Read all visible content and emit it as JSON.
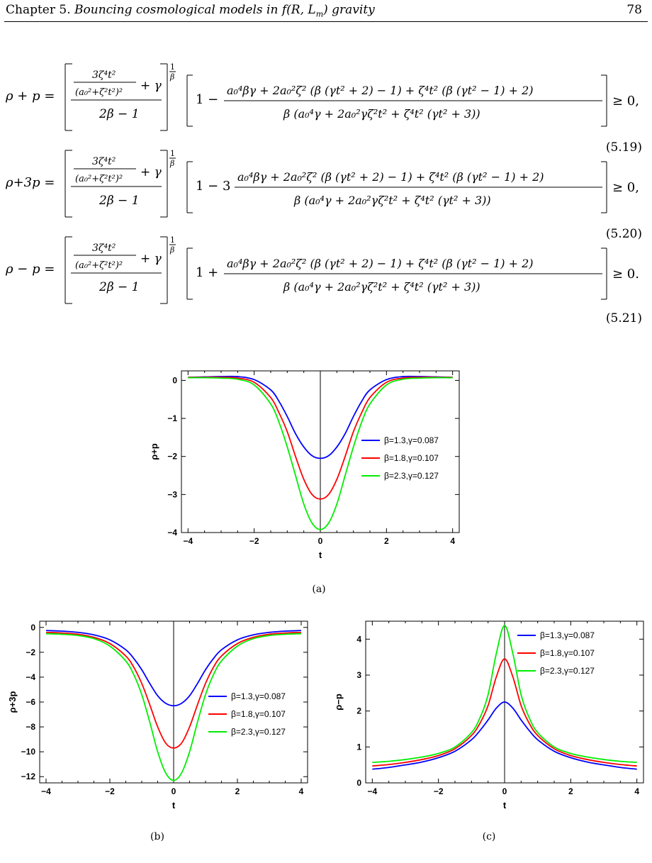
{
  "header": {
    "chapter": "Chapter 5.",
    "title": "Bouncing cosmological models in f(R, L_m) gravity",
    "page": "78"
  },
  "equations": [
    {
      "lhs": "ρ + p =",
      "sign": "1 −",
      "coef": "",
      "relation": "≥ 0,",
      "number": "(5.19)"
    },
    {
      "lhs": "ρ+3p =",
      "sign": "1 − 3",
      "coef": "3",
      "relation": "≥ 0,",
      "number": "(5.20)"
    },
    {
      "lhs": "ρ − p =",
      "sign": "1 +",
      "coef": "",
      "relation": "≥ 0.",
      "number": "(5.21)"
    }
  ],
  "captions": [
    "(a)",
    "(b)",
    "(c)"
  ],
  "chart_data": [
    {
      "type": "line",
      "panel": "(a)",
      "xlabel": "t",
      "ylabel": "ρ+p",
      "xlim": [
        -4.2,
        4.2
      ],
      "ylim": [
        -4.0,
        0.25
      ],
      "xticks": [
        -4,
        -2,
        0,
        2,
        4
      ],
      "yticks": [
        0,
        -1,
        -2,
        -3,
        -4
      ],
      "legend_position": "bottom-right",
      "series": [
        {
          "name": "β=1.3,γ=0.087",
          "color": "#0000ff",
          "x": [
            -4,
            -3.5,
            -3,
            -2.5,
            -2,
            -1.5,
            -1.25,
            -1,
            -0.75,
            -0.5,
            -0.25,
            0,
            0.25,
            0.5,
            0.75,
            1,
            1.25,
            1.5,
            2,
            2.5,
            3,
            3.5,
            4
          ],
          "y": [
            0.08,
            0.09,
            0.1,
            0.1,
            0.02,
            -0.25,
            -0.55,
            -0.95,
            -1.4,
            -1.75,
            -1.98,
            -2.05,
            -1.98,
            -1.75,
            -1.4,
            -0.95,
            -0.55,
            -0.25,
            0.02,
            0.1,
            0.1,
            0.09,
            0.08
          ]
        },
        {
          "name": "β=1.8,γ=0.107",
          "color": "#ff0000",
          "x": [
            -4,
            -3.5,
            -3,
            -2.5,
            -2,
            -1.5,
            -1.25,
            -1,
            -0.75,
            -0.5,
            -0.25,
            0,
            0.25,
            0.5,
            0.75,
            1,
            1.25,
            1.5,
            2,
            2.5,
            3,
            3.5,
            4
          ],
          "y": [
            0.08,
            0.08,
            0.08,
            0.06,
            -0.05,
            -0.45,
            -0.85,
            -1.35,
            -2.0,
            -2.6,
            -3.0,
            -3.12,
            -3.0,
            -2.6,
            -2.0,
            -1.35,
            -0.85,
            -0.45,
            -0.05,
            0.06,
            0.08,
            0.08,
            0.08
          ]
        },
        {
          "name": "β=2.3,γ=0.127",
          "color": "#00ee00",
          "x": [
            -4,
            -3.5,
            -3,
            -2.5,
            -2,
            -1.5,
            -1.25,
            -1,
            -0.75,
            -0.5,
            -0.25,
            0,
            0.25,
            0.5,
            0.75,
            1,
            1.25,
            1.5,
            2,
            2.5,
            3,
            3.5,
            4
          ],
          "y": [
            0.07,
            0.07,
            0.06,
            0.03,
            -0.12,
            -0.62,
            -1.1,
            -1.75,
            -2.5,
            -3.25,
            -3.75,
            -3.92,
            -3.75,
            -3.25,
            -2.5,
            -1.75,
            -1.1,
            -0.62,
            -0.12,
            0.03,
            0.06,
            0.07,
            0.07
          ]
        }
      ]
    },
    {
      "type": "line",
      "panel": "(b)",
      "xlabel": "t",
      "ylabel": "ρ+3p",
      "xlim": [
        -4.2,
        4.2
      ],
      "ylim": [
        -12.5,
        0.5
      ],
      "xticks": [
        -4,
        -2,
        0,
        2,
        4
      ],
      "yticks": [
        0,
        -2,
        -4,
        -6,
        -8,
        -10,
        -12
      ],
      "legend_position": "bottom-right",
      "series": [
        {
          "name": "β=1.3,γ=0.087",
          "color": "#0000ff",
          "x": [
            -4,
            -3.5,
            -3,
            -2.5,
            -2,
            -1.5,
            -1.25,
            -1,
            -0.75,
            -0.5,
            -0.25,
            0,
            0.25,
            0.5,
            0.75,
            1,
            1.25,
            1.5,
            2,
            2.5,
            3,
            3.5,
            4
          ],
          "y": [
            -0.25,
            -0.3,
            -0.4,
            -0.6,
            -1.0,
            -1.8,
            -2.5,
            -3.4,
            -4.5,
            -5.5,
            -6.1,
            -6.3,
            -6.1,
            -5.5,
            -4.5,
            -3.4,
            -2.5,
            -1.8,
            -1.0,
            -0.6,
            -0.4,
            -0.3,
            -0.25
          ]
        },
        {
          "name": "β=1.8,γ=0.107",
          "color": "#ff0000",
          "x": [
            -4,
            -3.5,
            -3,
            -2.5,
            -2,
            -1.5,
            -1.25,
            -1,
            -0.75,
            -0.5,
            -0.25,
            0,
            0.25,
            0.5,
            0.75,
            1,
            1.25,
            1.5,
            2,
            2.5,
            3,
            3.5,
            4
          ],
          "y": [
            -0.4,
            -0.45,
            -0.55,
            -0.8,
            -1.3,
            -2.3,
            -3.2,
            -4.5,
            -6.2,
            -8.0,
            -9.3,
            -9.7,
            -9.3,
            -8.0,
            -6.2,
            -4.5,
            -3.2,
            -2.3,
            -1.3,
            -0.8,
            -0.55,
            -0.45,
            -0.4
          ]
        },
        {
          "name": "β=2.3,γ=0.127",
          "color": "#00ee00",
          "x": [
            -4,
            -3.5,
            -3,
            -2.5,
            -2,
            -1.5,
            -1.25,
            -1,
            -0.75,
            -0.5,
            -0.25,
            0,
            0.25,
            0.5,
            0.75,
            1,
            1.25,
            1.5,
            2,
            2.5,
            3,
            3.5,
            4
          ],
          "y": [
            -0.5,
            -0.55,
            -0.65,
            -0.9,
            -1.5,
            -2.7,
            -3.8,
            -5.4,
            -7.6,
            -10.0,
            -11.7,
            -12.3,
            -11.7,
            -10.0,
            -7.6,
            -5.4,
            -3.8,
            -2.7,
            -1.5,
            -0.9,
            -0.65,
            -0.55,
            -0.5
          ]
        }
      ]
    },
    {
      "type": "line",
      "panel": "(c)",
      "xlabel": "t",
      "ylabel": "ρ−p",
      "xlim": [
        -4.2,
        4.2
      ],
      "ylim": [
        0,
        4.5
      ],
      "xticks": [
        -4,
        -2,
        0,
        2,
        4
      ],
      "yticks": [
        0,
        1,
        2,
        3,
        4
      ],
      "legend_position": "top-right",
      "series": [
        {
          "name": "β=1.3,γ=0.087",
          "color": "#0000ff",
          "x": [
            -4,
            -3.5,
            -3,
            -2.5,
            -2,
            -1.5,
            -1,
            -0.75,
            -0.5,
            -0.25,
            0,
            0.25,
            0.5,
            0.75,
            1,
            1.5,
            2,
            2.5,
            3,
            3.5,
            4
          ],
          "y": [
            0.38,
            0.43,
            0.5,
            0.58,
            0.7,
            0.88,
            1.2,
            1.45,
            1.75,
            2.08,
            2.25,
            2.08,
            1.75,
            1.45,
            1.2,
            0.88,
            0.7,
            0.58,
            0.5,
            0.43,
            0.38
          ]
        },
        {
          "name": "β=1.8,γ=0.107",
          "color": "#ff0000",
          "x": [
            -4,
            -3.5,
            -3,
            -2.5,
            -2,
            -1.5,
            -1,
            -0.75,
            -0.5,
            -0.25,
            0,
            0.25,
            0.5,
            0.75,
            1,
            1.5,
            2,
            2.5,
            3,
            3.5,
            4
          ],
          "y": [
            0.47,
            0.51,
            0.57,
            0.65,
            0.76,
            0.95,
            1.32,
            1.65,
            2.15,
            2.95,
            3.45,
            2.95,
            2.15,
            1.65,
            1.32,
            0.95,
            0.76,
            0.65,
            0.57,
            0.51,
            0.47
          ]
        },
        {
          "name": "β=2.3,γ=0.127",
          "color": "#00ee00",
          "x": [
            -4,
            -3.5,
            -3,
            -2.5,
            -2,
            -1.5,
            -1,
            -0.75,
            -0.5,
            -0.25,
            0,
            0.25,
            0.5,
            0.75,
            1,
            1.5,
            2,
            2.5,
            3,
            3.5,
            4
          ],
          "y": [
            0.57,
            0.6,
            0.65,
            0.72,
            0.82,
            1.0,
            1.4,
            1.8,
            2.45,
            3.6,
            4.38,
            3.6,
            2.45,
            1.8,
            1.4,
            1.0,
            0.82,
            0.72,
            0.65,
            0.6,
            0.57
          ]
        }
      ]
    }
  ]
}
